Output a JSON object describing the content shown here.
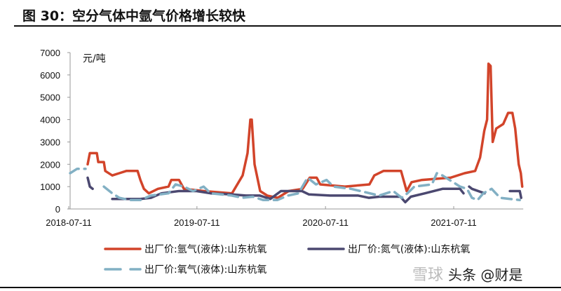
{
  "title": "图 30：空分气体中氩气价格增长较快",
  "watermark": {
    "left": "雪球",
    "right": "头条 @财是"
  },
  "chart_data": {
    "type": "line",
    "title": "图 30：空分气体中氩气价格增长较快",
    "ylabel": "元/吨",
    "xlabel": "",
    "ylim": [
      0,
      7000
    ],
    "yticks": [
      0,
      1000,
      2000,
      3000,
      4000,
      5000,
      6000,
      7000
    ],
    "xticks": [
      "2018-07-11",
      "2019-07-11",
      "2020-07-11",
      "2021-07-11"
    ],
    "xlim": [
      "2018-07-11",
      "2022-01-25"
    ],
    "grid": false,
    "legend_position": "bottom",
    "series": [
      {
        "name": "出厂价:氩气(液体):山东杭氧",
        "color": "#d2442a",
        "style": "solid",
        "points": [
          [
            "2018-09-03",
            2000
          ],
          [
            "2018-09-09",
            2500
          ],
          [
            "2018-09-29",
            2500
          ],
          [
            "2018-10-03",
            2100
          ],
          [
            "2018-10-19",
            2100
          ],
          [
            "2018-10-23",
            1700
          ],
          [
            "2018-11-12",
            1500
          ],
          [
            "2018-12-02",
            1600
          ],
          [
            "2018-12-22",
            1700
          ],
          [
            "2019-01-23",
            1700
          ],
          [
            "2019-01-31",
            1300
          ],
          [
            "2019-02-10",
            900
          ],
          [
            "2019-02-24",
            700
          ],
          [
            "2019-03-22",
            900
          ],
          [
            "2019-04-21",
            1000
          ],
          [
            "2019-04-29",
            1300
          ],
          [
            "2019-05-21",
            1300
          ],
          [
            "2019-06-04",
            900
          ],
          [
            "2019-07-31",
            800
          ],
          [
            "2019-10-19",
            700
          ],
          [
            "2019-11-18",
            1500
          ],
          [
            "2019-12-02",
            2500
          ],
          [
            "2019-12-10",
            4000
          ],
          [
            "2019-12-14",
            4000
          ],
          [
            "2019-12-22",
            2000
          ],
          [
            "2020-01-07",
            800
          ],
          [
            "2020-01-27",
            600
          ],
          [
            "2020-02-26",
            500
          ],
          [
            "2020-03-28",
            800
          ],
          [
            "2020-05-07",
            900
          ],
          [
            "2020-05-27",
            1400
          ],
          [
            "2020-06-16",
            1400
          ],
          [
            "2020-06-26",
            1100
          ],
          [
            "2020-09-04",
            1000
          ],
          [
            "2020-11-13",
            1100
          ],
          [
            "2020-11-27",
            1500
          ],
          [
            "2020-12-23",
            1700
          ],
          [
            "2021-02-11",
            1700
          ],
          [
            "2021-02-27",
            800
          ],
          [
            "2021-03-13",
            1200
          ],
          [
            "2021-04-12",
            1300
          ],
          [
            "2021-07-02",
            1400
          ],
          [
            "2021-08-11",
            1600
          ],
          [
            "2021-09-10",
            1700
          ],
          [
            "2021-09-24",
            2300
          ],
          [
            "2021-10-06",
            3500
          ],
          [
            "2021-10-14",
            4000
          ],
          [
            "2021-10-18",
            6500
          ],
          [
            "2021-10-24",
            6400
          ],
          [
            "2021-10-30",
            3000
          ],
          [
            "2021-11-09",
            3600
          ],
          [
            "2021-11-29",
            3800
          ],
          [
            "2021-12-13",
            4300
          ],
          [
            "2021-12-25",
            4300
          ],
          [
            "2022-01-02",
            3600
          ],
          [
            "2022-01-12",
            2000
          ],
          [
            "2022-01-18",
            1600
          ],
          [
            "2022-01-22",
            1000
          ]
        ]
      },
      {
        "name": "出厂价:氮气(液体):山东杭氧",
        "color": "#4b4870",
        "style": "solid",
        "points": [
          [
            "2018-09-03",
            1400
          ],
          [
            "2018-09-09",
            1000
          ],
          [
            "2018-09-17",
            900
          ],
          [
            "2018-10-01",
            null
          ],
          [
            "2018-11-12",
            450
          ],
          [
            "2019-01-31",
            450
          ],
          [
            "2019-03-02",
            500
          ],
          [
            "2019-04-01",
            700
          ],
          [
            "2019-05-21",
            800
          ],
          [
            "2019-07-10",
            800
          ],
          [
            "2019-08-19",
            700
          ],
          [
            "2019-10-18",
            650
          ],
          [
            "2019-11-27",
            600
          ],
          [
            "2020-01-06",
            600
          ],
          [
            "2020-02-05",
            450
          ],
          [
            "2020-03-06",
            800
          ],
          [
            "2020-05-05",
            800
          ],
          [
            "2020-05-25",
            650
          ],
          [
            "2020-07-24",
            600
          ],
          [
            "2020-10-12",
            600
          ],
          [
            "2020-11-11",
            500
          ],
          [
            "2020-12-11",
            550
          ],
          [
            "2021-02-09",
            550
          ],
          [
            "2021-02-23",
            300
          ],
          [
            "2021-03-11",
            550
          ],
          [
            "2021-04-20",
            700
          ],
          [
            "2021-06-09",
            900
          ],
          [
            "2021-07-29",
            900
          ],
          [
            "2021-08-08",
            700
          ],
          [
            "2021-08-15",
            null
          ],
          [
            "2021-08-24",
            1000
          ],
          [
            "2021-09-01",
            900
          ],
          [
            "2021-10-07",
            700
          ],
          [
            "2021-11-01",
            null
          ],
          [
            "2021-12-18",
            800
          ],
          [
            "2022-01-15",
            800
          ],
          [
            "2022-01-19",
            500
          ]
        ]
      },
      {
        "name": "出厂价:氧气(液体):山东杭氧",
        "color": "#82b0c4",
        "style": "dashed",
        "points": [
          [
            "2018-07-15",
            1600
          ],
          [
            "2018-08-04",
            1800
          ],
          [
            "2018-08-28",
            1800
          ],
          [
            "2018-09-20",
            null
          ],
          [
            "2018-10-19",
            1000
          ],
          [
            "2018-11-12",
            700
          ],
          [
            "2018-12-02",
            500
          ],
          [
            "2019-01-01",
            400
          ],
          [
            "2019-01-31",
            400
          ],
          [
            "2019-03-02",
            600
          ],
          [
            "2019-04-21",
            700
          ],
          [
            "2019-05-11",
            1100
          ],
          [
            "2019-06-04",
            1000
          ],
          [
            "2019-06-30",
            800
          ],
          [
            "2019-07-30",
            1000
          ],
          [
            "2019-08-19",
            700
          ],
          [
            "2019-10-18",
            600
          ],
          [
            "2019-11-17",
            500
          ],
          [
            "2019-12-17",
            550
          ],
          [
            "2020-01-16",
            400
          ],
          [
            "2020-02-25",
            400
          ],
          [
            "2020-03-26",
            600
          ],
          [
            "2020-04-25",
            700
          ],
          [
            "2020-05-21",
            1400
          ],
          [
            "2020-06-14",
            1100
          ],
          [
            "2020-07-14",
            1300
          ],
          [
            "2020-08-03",
            1000
          ],
          [
            "2020-09-22",
            900
          ],
          [
            "2020-12-11",
            600
          ],
          [
            "2021-01-20",
            800
          ],
          [
            "2021-02-13",
            500
          ],
          [
            "2021-03-01",
            700
          ],
          [
            "2021-03-21",
            1000
          ],
          [
            "2021-05-10",
            1100
          ],
          [
            "2021-05-24",
            1600
          ],
          [
            "2021-06-09",
            1500
          ],
          [
            "2021-06-29",
            1300
          ],
          [
            "2021-07-29",
            1000
          ],
          [
            "2021-08-18",
            900
          ],
          [
            "2021-09-01",
            500
          ],
          [
            "2021-09-17",
            400
          ],
          [
            "2021-10-03",
            700
          ],
          [
            "2021-10-27",
            900
          ],
          [
            "2021-11-20",
            500
          ],
          [
            "2022-01-15",
            400
          ]
        ]
      }
    ]
  }
}
